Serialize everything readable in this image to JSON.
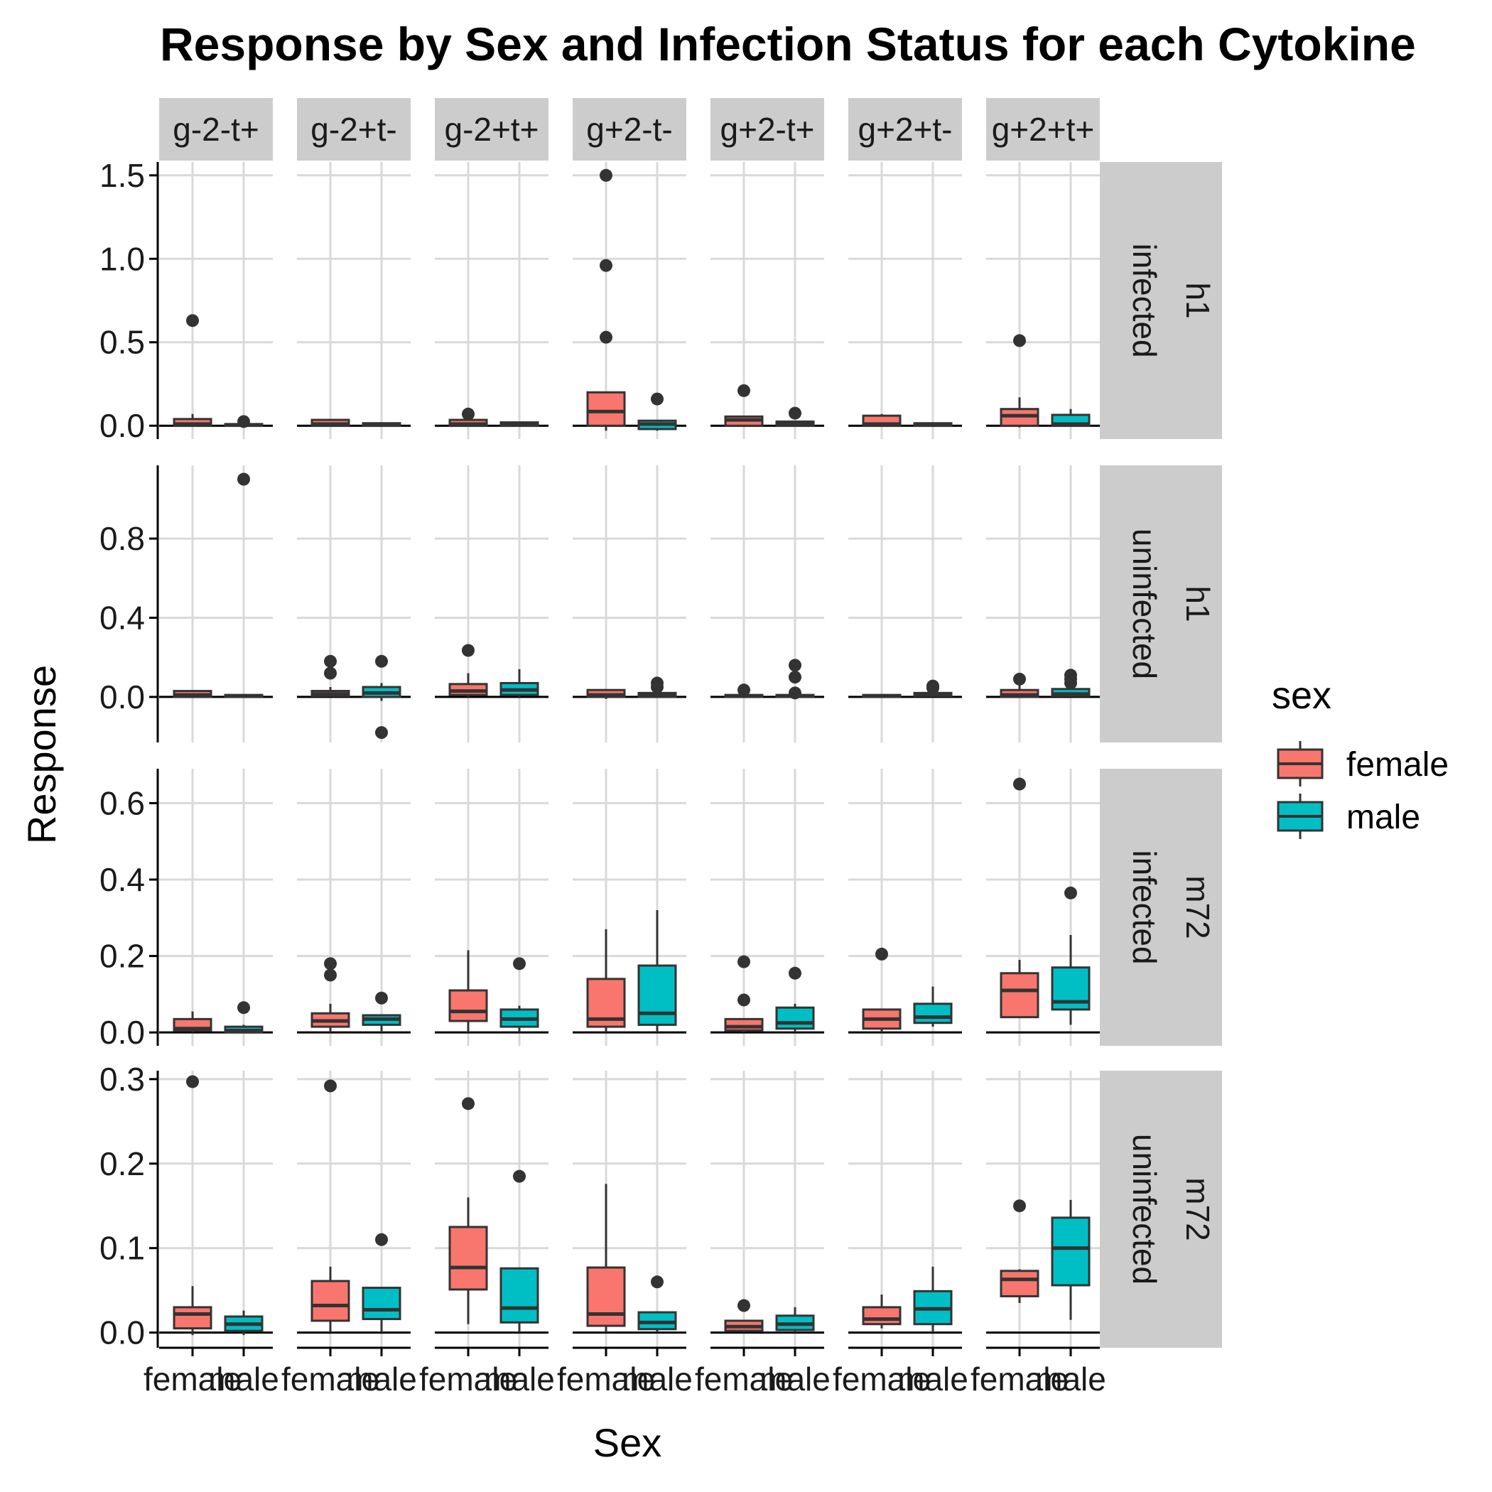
{
  "chart_data": {
    "type": "boxplot",
    "title": "Response by Sex and Infection Status for each Cytokine",
    "xlabel": "Sex",
    "ylabel": "Response",
    "categories": [
      "female",
      "male"
    ],
    "legend": {
      "title": "sex",
      "position": "right",
      "entries": [
        {
          "label": "female",
          "color": "#F8766D"
        },
        {
          "label": "male",
          "color": "#00BFC4"
        }
      ]
    },
    "grid": true,
    "columns": [
      "g-2-t+",
      "g-2+t-",
      "g-2+t+",
      "g+2-t-",
      "g+2-t+",
      "g+2+t-",
      "g+2+t+"
    ],
    "rows": [
      {
        "strain": "h1",
        "status": "infected",
        "ylim": [
          -0.08,
          1.58
        ],
        "ticks": [
          0.0,
          0.5,
          1.0,
          1.5
        ],
        "tick_labels": [
          "0.0",
          "0.5",
          "1.0",
          "1.5"
        ],
        "boxes": [
          {
            "female": {
              "min": 0,
              "q1": 0,
              "median": 0.01,
              "q3": 0.04,
              "max": 0.07,
              "outliers": [
                0.63
              ]
            },
            "male": {
              "min": 0,
              "q1": 0,
              "median": 0.005,
              "q3": 0.01,
              "max": 0.01,
              "outliers": [
                0.025
              ]
            }
          },
          {
            "female": {
              "min": 0,
              "q1": 0,
              "median": 0.01,
              "q3": 0.035,
              "max": 0.04,
              "outliers": []
            },
            "male": {
              "min": 0,
              "q1": 0,
              "median": 0.005,
              "q3": 0.015,
              "max": 0.02,
              "outliers": []
            }
          },
          {
            "female": {
              "min": 0,
              "q1": 0,
              "median": 0.01,
              "q3": 0.035,
              "max": 0.06,
              "outliers": [
                0.07
              ]
            },
            "male": {
              "min": 0,
              "q1": 0,
              "median": 0.005,
              "q3": 0.02,
              "max": 0.025,
              "outliers": []
            }
          },
          {
            "female": {
              "min": -0.03,
              "q1": 0,
              "median": 0.085,
              "q3": 0.2,
              "max": 0.2,
              "outliers": [
                0.53,
                0.96,
                1.5
              ]
            },
            "male": {
              "min": -0.03,
              "q1": -0.02,
              "median": 0.01,
              "q3": 0.03,
              "max": 0.03,
              "outliers": [
                0.16
              ]
            }
          },
          {
            "female": {
              "min": 0,
              "q1": 0,
              "median": 0.035,
              "q3": 0.055,
              "max": 0.06,
              "outliers": [
                0.21
              ]
            },
            "male": {
              "min": 0,
              "q1": 0,
              "median": 0.01,
              "q3": 0.025,
              "max": 0.03,
              "outliers": [
                0.075
              ]
            }
          },
          {
            "female": {
              "min": 0,
              "q1": 0,
              "median": 0.01,
              "q3": 0.06,
              "max": 0.07,
              "outliers": []
            },
            "male": {
              "min": 0,
              "q1": 0,
              "median": 0.005,
              "q3": 0.015,
              "max": 0.02,
              "outliers": []
            }
          },
          {
            "female": {
              "min": -0.01,
              "q1": 0,
              "median": 0.06,
              "q3": 0.1,
              "max": 0.17,
              "outliers": [
                0.51
              ]
            },
            "male": {
              "min": 0,
              "q1": 0,
              "median": 0.01,
              "q3": 0.065,
              "max": 0.1,
              "outliers": []
            }
          }
        ]
      },
      {
        "strain": "h1",
        "status": "uninfected",
        "ylim": [
          -0.23,
          1.17
        ],
        "ticks": [
          0.0,
          0.4,
          0.8
        ],
        "tick_labels": [
          "0.0",
          "0.4",
          "0.8"
        ],
        "boxes": [
          {
            "female": {
              "min": 0,
              "q1": 0,
              "median": 0.01,
              "q3": 0.03,
              "max": 0.03,
              "outliers": []
            },
            "male": {
              "min": 0,
              "q1": 0,
              "median": 0.005,
              "q3": 0.01,
              "max": 0.01,
              "outliers": [
                1.1
              ]
            }
          },
          {
            "female": {
              "min": 0,
              "q1": 0.005,
              "median": 0.015,
              "q3": 0.03,
              "max": 0.05,
              "outliers": [
                0.12,
                0.18
              ]
            },
            "male": {
              "min": -0.02,
              "q1": 0,
              "median": 0.02,
              "q3": 0.05,
              "max": 0.07,
              "outliers": [
                0.18,
                -0.18
              ]
            }
          },
          {
            "female": {
              "min": 0,
              "q1": 0.01,
              "median": 0.03,
              "q3": 0.065,
              "max": 0.12,
              "outliers": [
                0.235
              ]
            },
            "male": {
              "min": 0,
              "q1": 0.01,
              "median": 0.035,
              "q3": 0.07,
              "max": 0.14,
              "outliers": []
            }
          },
          {
            "female": {
              "min": -0.01,
              "q1": 0,
              "median": 0.01,
              "q3": 0.035,
              "max": 0.035,
              "outliers": []
            },
            "male": {
              "min": 0,
              "q1": 0,
              "median": 0.01,
              "q3": 0.02,
              "max": 0.03,
              "outliers": [
                0.05,
                0.07
              ]
            }
          },
          {
            "female": {
              "min": 0,
              "q1": 0,
              "median": 0.005,
              "q3": 0.01,
              "max": 0.02,
              "outliers": [
                0.035
              ]
            },
            "male": {
              "min": 0,
              "q1": 0,
              "median": 0.005,
              "q3": 0.01,
              "max": 0.02,
              "outliers": [
                0.02,
                0.1,
                0.16
              ]
            }
          },
          {
            "female": {
              "min": 0,
              "q1": 0,
              "median": 0.005,
              "q3": 0.01,
              "max": 0.01,
              "outliers": []
            },
            "male": {
              "min": 0,
              "q1": 0.005,
              "median": 0.01,
              "q3": 0.02,
              "max": 0.03,
              "outliers": [
                0.045,
                0.055
              ]
            }
          },
          {
            "female": {
              "min": 0,
              "q1": 0,
              "median": 0.01,
              "q3": 0.035,
              "max": 0.06,
              "outliers": [
                0.09
              ]
            },
            "male": {
              "min": 0,
              "q1": 0.005,
              "median": 0.015,
              "q3": 0.04,
              "max": 0.06,
              "outliers": [
                0.07,
                0.09,
                0.11
              ]
            }
          }
        ]
      },
      {
        "strain": "m72",
        "status": "infected",
        "ylim": [
          -0.035,
          0.69
        ],
        "ticks": [
          0.0,
          0.2,
          0.4,
          0.6
        ],
        "tick_labels": [
          "0.0",
          "0.2",
          "0.4",
          "0.6"
        ],
        "boxes": [
          {
            "female": {
              "min": 0,
              "q1": 0.005,
              "median": 0.01,
              "q3": 0.035,
              "max": 0.055,
              "outliers": []
            },
            "male": {
              "min": 0,
              "q1": 0,
              "median": 0.005,
              "q3": 0.015,
              "max": 0.02,
              "outliers": [
                0.065
              ]
            }
          },
          {
            "female": {
              "min": 0,
              "q1": 0.015,
              "median": 0.03,
              "q3": 0.05,
              "max": 0.075,
              "outliers": [
                0.15,
                0.18
              ]
            },
            "male": {
              "min": 0,
              "q1": 0.02,
              "median": 0.035,
              "q3": 0.045,
              "max": 0.045,
              "outliers": [
                0.09
              ]
            }
          },
          {
            "female": {
              "min": 0,
              "q1": 0.03,
              "median": 0.055,
              "q3": 0.11,
              "max": 0.215,
              "outliers": []
            },
            "male": {
              "min": 0,
              "q1": 0.015,
              "median": 0.035,
              "q3": 0.06,
              "max": 0.07,
              "outliers": [
                0.18
              ]
            }
          },
          {
            "female": {
              "min": 0,
              "q1": 0.015,
              "median": 0.035,
              "q3": 0.14,
              "max": 0.27,
              "outliers": []
            },
            "male": {
              "min": 0,
              "q1": 0.02,
              "median": 0.05,
              "q3": 0.175,
              "max": 0.32,
              "outliers": []
            }
          },
          {
            "female": {
              "min": 0,
              "q1": 0.005,
              "median": 0.015,
              "q3": 0.035,
              "max": 0.035,
              "outliers": [
                0.085,
                0.185
              ]
            },
            "male": {
              "min": 0,
              "q1": 0.01,
              "median": 0.025,
              "q3": 0.065,
              "max": 0.075,
              "outliers": [
                0.155
              ]
            }
          },
          {
            "female": {
              "min": 0,
              "q1": 0.01,
              "median": 0.035,
              "q3": 0.06,
              "max": 0.06,
              "outliers": [
                0.205
              ]
            },
            "male": {
              "min": 0.015,
              "q1": 0.025,
              "median": 0.04,
              "q3": 0.075,
              "max": 0.12,
              "outliers": []
            }
          },
          {
            "female": {
              "min": 0.04,
              "q1": 0.04,
              "median": 0.11,
              "q3": 0.155,
              "max": 0.19,
              "outliers": [
                0.65
              ]
            },
            "male": {
              "min": 0.02,
              "q1": 0.06,
              "median": 0.08,
              "q3": 0.17,
              "max": 0.255,
              "outliers": [
                0.365
              ]
            }
          }
        ]
      },
      {
        "strain": "m72",
        "status": "uninfected",
        "ylim": [
          -0.018,
          0.31
        ],
        "ticks": [
          0.0,
          0.1,
          0.2,
          0.3
        ],
        "tick_labels": [
          "0.0",
          "0.1",
          "0.2",
          "0.3"
        ],
        "boxes": [
          {
            "female": {
              "min": -0.003,
              "q1": 0.005,
              "median": 0.022,
              "q3": 0.03,
              "max": 0.055,
              "outliers": [
                0.297
              ]
            },
            "male": {
              "min": -0.003,
              "q1": 0.002,
              "median": 0.01,
              "q3": 0.019,
              "max": 0.026,
              "outliers": []
            }
          },
          {
            "female": {
              "min": 0,
              "q1": 0.014,
              "median": 0.032,
              "q3": 0.061,
              "max": 0.078,
              "outliers": [
                0.292
              ]
            },
            "male": {
              "min": 0,
              "q1": 0.016,
              "median": 0.027,
              "q3": 0.053,
              "max": 0.053,
              "outliers": [
                0.11
              ]
            }
          },
          {
            "female": {
              "min": 0.01,
              "q1": 0.051,
              "median": 0.077,
              "q3": 0.125,
              "max": 0.16,
              "outliers": [
                0.271
              ]
            },
            "male": {
              "min": 0,
              "q1": 0.012,
              "median": 0.029,
              "q3": 0.076,
              "max": 0.076,
              "outliers": [
                0.185
              ]
            }
          },
          {
            "female": {
              "min": 0,
              "q1": 0.008,
              "median": 0.022,
              "q3": 0.077,
              "max": 0.176,
              "outliers": []
            },
            "male": {
              "min": 0,
              "q1": 0.004,
              "median": 0.012,
              "q3": 0.024,
              "max": 0.024,
              "outliers": [
                0.06
              ]
            }
          },
          {
            "female": {
              "min": 0,
              "q1": 0.002,
              "median": 0.007,
              "q3": 0.014,
              "max": 0.014,
              "outliers": [
                0.032
              ]
            },
            "male": {
              "min": 0,
              "q1": 0.003,
              "median": 0.01,
              "q3": 0.02,
              "max": 0.03,
              "outliers": []
            }
          },
          {
            "female": {
              "min": 0.005,
              "q1": 0.01,
              "median": 0.016,
              "q3": 0.03,
              "max": 0.045,
              "outliers": []
            },
            "male": {
              "min": 0,
              "q1": 0.01,
              "median": 0.028,
              "q3": 0.049,
              "max": 0.078,
              "outliers": []
            }
          },
          {
            "female": {
              "min": 0.035,
              "q1": 0.043,
              "median": 0.063,
              "q3": 0.073,
              "max": 0.075,
              "outliers": [
                0.15
              ]
            },
            "male": {
              "min": 0.015,
              "q1": 0.056,
              "median": 0.1,
              "q3": 0.136,
              "max": 0.157,
              "outliers": []
            }
          }
        ]
      }
    ]
  }
}
